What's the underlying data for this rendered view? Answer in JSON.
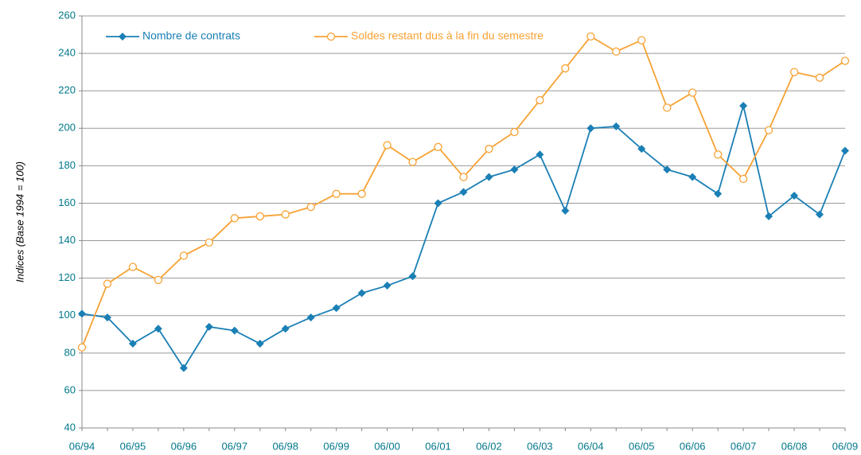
{
  "chart_data": {
    "type": "line",
    "y_label": "Indices (Base 1994 = 100)",
    "categories": [
      "06/94",
      null,
      "06/95",
      null,
      "06/96",
      null,
      "06/97",
      null,
      "06/98",
      null,
      "06/99",
      null,
      "06/00",
      null,
      "06/01",
      null,
      "06/02",
      null,
      "06/03",
      null,
      "06/04",
      null,
      "06/05",
      null,
      "06/06",
      null,
      "06/07",
      null,
      "06/08",
      null,
      "06/09"
    ],
    "series": [
      {
        "name": "Nombre de contrats",
        "color": "#1a7fb5",
        "marker": "diamond",
        "values": [
          101,
          99,
          85,
          93,
          72,
          94,
          92,
          85,
          93,
          99,
          104,
          112,
          116,
          121,
          160,
          166,
          174,
          178,
          186,
          156,
          200,
          201,
          189,
          178,
          174,
          165,
          212,
          153,
          164,
          154,
          188
        ]
      },
      {
        "name": "Soldes restant dus à la fin du semestre",
        "color": "#f7a234",
        "marker": "circle",
        "values": [
          83,
          117,
          126,
          119,
          132,
          139,
          152,
          153,
          154,
          158,
          165,
          165,
          191,
          182,
          190,
          174,
          189,
          198,
          215,
          232,
          249,
          241,
          247,
          211,
          219,
          186,
          173,
          199,
          230,
          227,
          236
        ]
      }
    ],
    "ylim": [
      40,
      260
    ],
    "yticks": [
      40,
      60,
      80,
      100,
      120,
      140,
      160,
      180,
      200,
      220,
      240,
      260
    ],
    "grid": true,
    "legend": "top-left"
  }
}
